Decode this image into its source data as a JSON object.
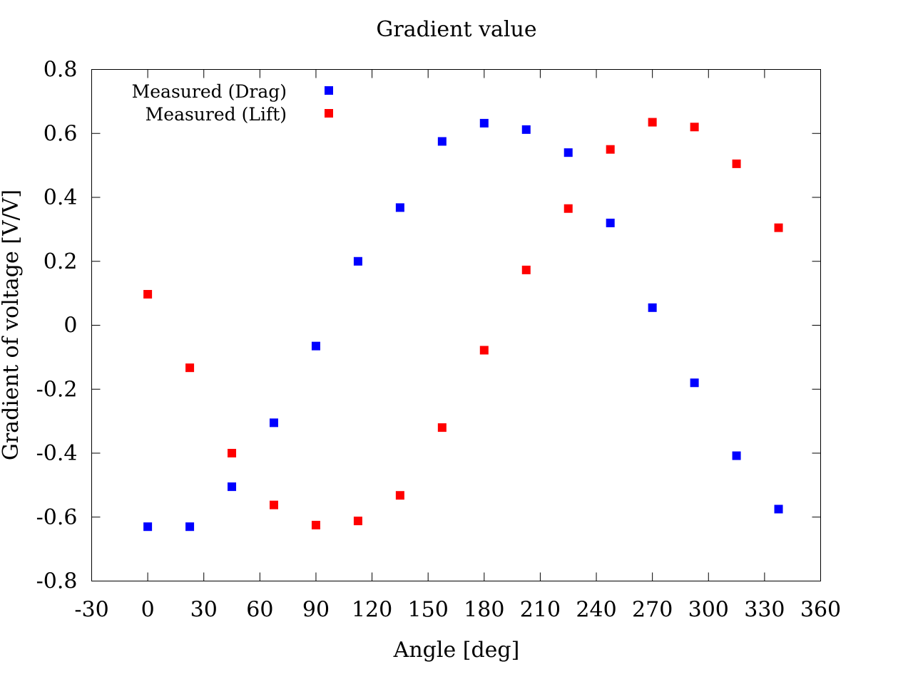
{
  "chart_data": {
    "type": "scatter",
    "title": "Gradient value",
    "xlabel": "Angle [deg]",
    "ylabel": "Gradient of voltage [V/V]",
    "xlim": [
      -30,
      360
    ],
    "ylim": [
      -0.8,
      0.8
    ],
    "xticks": [
      -30,
      0,
      30,
      60,
      90,
      120,
      150,
      180,
      210,
      240,
      270,
      300,
      330,
      360
    ],
    "yticks": [
      -0.8,
      -0.6,
      -0.4,
      -0.2,
      0,
      0.2,
      0.4,
      0.6,
      0.8
    ],
    "xtick_labels": [
      "-30",
      "0",
      "30",
      "60",
      "90",
      "120",
      "150",
      "180",
      "210",
      "240",
      "270",
      "300",
      "330",
      "360"
    ],
    "ytick_labels": [
      "-0.8",
      "-0.6",
      "-0.4",
      "-0.2",
      "0",
      "0.2",
      "0.4",
      "0.6",
      "0.8"
    ],
    "grid": false,
    "legend_position": "top-left",
    "series": [
      {
        "name": "Measured (Drag)",
        "color": "#0000ff",
        "marker": "square",
        "x": [
          0,
          22.5,
          45,
          67.5,
          90,
          112.5,
          135,
          157.5,
          180,
          202.5,
          225,
          247.5,
          270,
          292.5,
          315,
          337.5
        ],
        "y": [
          -0.63,
          -0.63,
          -0.505,
          -0.305,
          -0.065,
          0.2,
          0.368,
          0.575,
          0.632,
          0.612,
          0.54,
          0.32,
          0.055,
          -0.18,
          -0.408,
          -0.575
        ]
      },
      {
        "name": "Measured (Lift)",
        "color": "#ff0000",
        "marker": "square",
        "x": [
          0,
          22.5,
          45,
          67.5,
          90,
          112.5,
          135,
          157.5,
          180,
          202.5,
          225,
          247.5,
          270,
          292.5,
          315,
          337.5
        ],
        "y": [
          0.097,
          -0.133,
          -0.4,
          -0.562,
          -0.625,
          -0.612,
          -0.532,
          -0.32,
          -0.078,
          0.173,
          0.365,
          0.55,
          0.635,
          0.62,
          0.505,
          0.305
        ]
      }
    ]
  }
}
